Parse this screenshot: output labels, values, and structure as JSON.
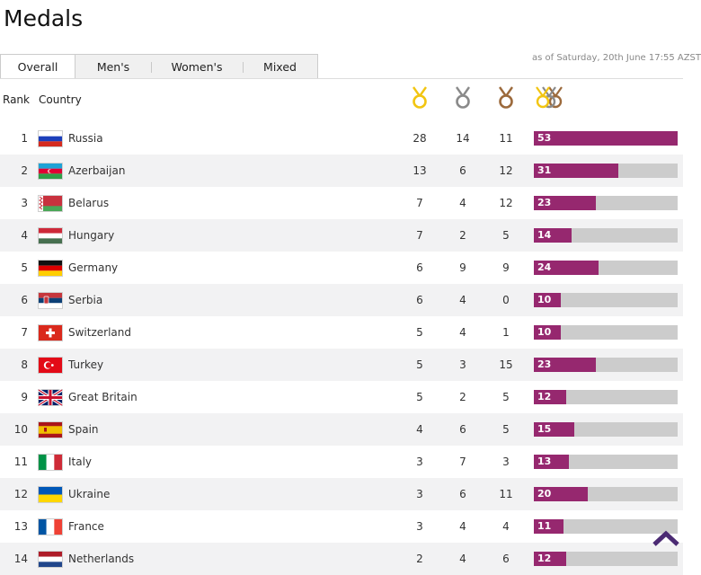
{
  "page": {
    "title": "Medals"
  },
  "tabs": [
    {
      "label": "Overall",
      "active": true
    },
    {
      "label": "Men's"
    },
    {
      "label": "Women's"
    },
    {
      "label": "Mixed"
    }
  ],
  "as_of": "as of Saturday, 20th June 17:55 AZST",
  "columns": {
    "rank": "Rank",
    "country": "Country",
    "gold_icon": "gold-medal-icon",
    "silver_icon": "silver-medal-icon",
    "bronze_icon": "bronze-medal-icon",
    "total_icon": "total-medals-icon"
  },
  "colors": {
    "gold": "#f2c511",
    "silver": "#8a8a8a",
    "bronze": "#9c6a3c",
    "bar_fill": "#96286f",
    "bar_bg": "#cccccc",
    "scroll_arrow": "#4b2a73"
  },
  "rows": [
    {
      "rank": "1",
      "country": "Russia",
      "flag": "russia-flag-icon",
      "gold": "28",
      "silver": "14",
      "bronze": "11",
      "total": "53"
    },
    {
      "rank": "2",
      "country": "Azerbaijan",
      "flag": "azerbaijan-flag-icon",
      "gold": "13",
      "silver": "6",
      "bronze": "12",
      "total": "31"
    },
    {
      "rank": "3",
      "country": "Belarus",
      "flag": "belarus-flag-icon",
      "gold": "7",
      "silver": "4",
      "bronze": "12",
      "total": "23"
    },
    {
      "rank": "4",
      "country": "Hungary",
      "flag": "hungary-flag-icon",
      "gold": "7",
      "silver": "2",
      "bronze": "5",
      "total": "14"
    },
    {
      "rank": "5",
      "country": "Germany",
      "flag": "germany-flag-icon",
      "gold": "6",
      "silver": "9",
      "bronze": "9",
      "total": "24"
    },
    {
      "rank": "6",
      "country": "Serbia",
      "flag": "serbia-flag-icon",
      "gold": "6",
      "silver": "4",
      "bronze": "0",
      "total": "10"
    },
    {
      "rank": "7",
      "country": "Switzerland",
      "flag": "switzerland-flag-icon",
      "gold": "5",
      "silver": "4",
      "bronze": "1",
      "total": "10"
    },
    {
      "rank": "8",
      "country": "Turkey",
      "flag": "turkey-flag-icon",
      "gold": "5",
      "silver": "3",
      "bronze": "15",
      "total": "23"
    },
    {
      "rank": "9",
      "country": "Great Britain",
      "flag": "great-britain-flag-icon",
      "gold": "5",
      "silver": "2",
      "bronze": "5",
      "total": "12"
    },
    {
      "rank": "10",
      "country": "Spain",
      "flag": "spain-flag-icon",
      "gold": "4",
      "silver": "6",
      "bronze": "5",
      "total": "15"
    },
    {
      "rank": "11",
      "country": "Italy",
      "flag": "italy-flag-icon",
      "gold": "3",
      "silver": "7",
      "bronze": "3",
      "total": "13"
    },
    {
      "rank": "12",
      "country": "Ukraine",
      "flag": "ukraine-flag-icon",
      "gold": "3",
      "silver": "6",
      "bronze": "11",
      "total": "20"
    },
    {
      "rank": "13",
      "country": "France",
      "flag": "france-flag-icon",
      "gold": "3",
      "silver": "4",
      "bronze": "4",
      "total": "11"
    },
    {
      "rank": "14",
      "country": "Netherlands",
      "flag": "netherlands-flag-icon",
      "gold": "2",
      "silver": "4",
      "bronze": "6",
      "total": "12"
    }
  ],
  "scroll_top_icon": "scroll-to-top-icon"
}
